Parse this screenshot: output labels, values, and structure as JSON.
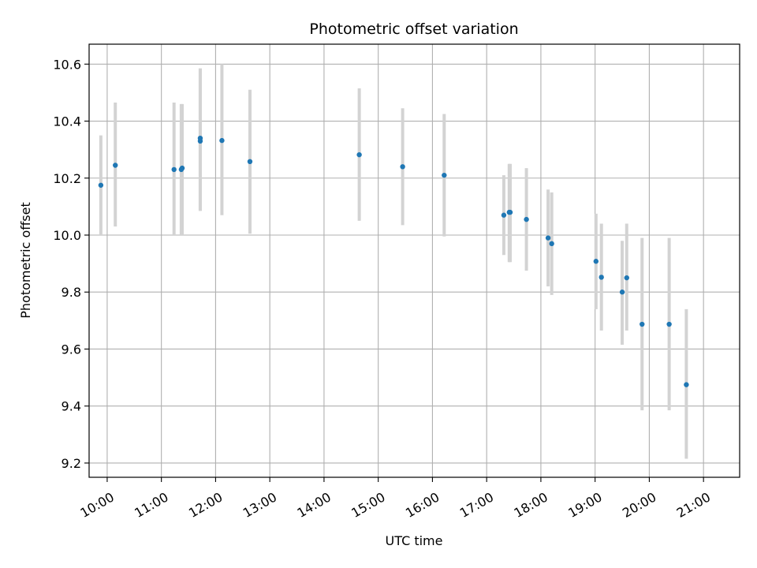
{
  "chart_data": {
    "type": "scatter",
    "title": "Photometric offset variation",
    "xlabel": "UTC time",
    "ylabel": "Photometric offset",
    "x_unit": "hours UTC",
    "xlim": [
      "09:40",
      "21:40"
    ],
    "ylim": [
      9.15,
      10.67
    ],
    "x_ticks": [
      "10:00",
      "11:00",
      "12:00",
      "13:00",
      "14:00",
      "15:00",
      "16:00",
      "17:00",
      "18:00",
      "19:00",
      "20:00",
      "21:00"
    ],
    "y_ticks": [
      "9.2",
      "9.4",
      "9.6",
      "9.8",
      "10.0",
      "10.2",
      "10.4",
      "10.6"
    ],
    "grid": true,
    "colors": {
      "point": "#1f77b4",
      "error_bar": "#d3d3d3",
      "grid": "#b0b0b0"
    },
    "points": [
      {
        "time": "09:53",
        "y": 10.175,
        "ylow": 10.0,
        "yhigh": 10.35
      },
      {
        "time": "10:09",
        "y": 10.245,
        "ylow": 10.03,
        "yhigh": 10.465
      },
      {
        "time": "11:14",
        "y": 10.23,
        "ylow": 10.0,
        "yhigh": 10.465
      },
      {
        "time": "11:22",
        "y": 10.23,
        "ylow": 10.0,
        "yhigh": 10.46
      },
      {
        "time": "11:23",
        "y": 10.235,
        "ylow": 10.0,
        "yhigh": 10.46
      },
      {
        "time": "11:43",
        "y": 10.33,
        "ylow": 10.085,
        "yhigh": 10.585
      },
      {
        "time": "11:43",
        "y": 10.34,
        "ylow": 10.085,
        "yhigh": 10.585
      },
      {
        "time": "12:07",
        "y": 10.332,
        "ylow": 10.07,
        "yhigh": 10.6
      },
      {
        "time": "12:38",
        "y": 10.258,
        "ylow": 10.005,
        "yhigh": 10.51
      },
      {
        "time": "14:39",
        "y": 10.282,
        "ylow": 10.05,
        "yhigh": 10.515
      },
      {
        "time": "15:27",
        "y": 10.24,
        "ylow": 10.035,
        "yhigh": 10.445
      },
      {
        "time": "16:13",
        "y": 10.21,
        "ylow": 9.995,
        "yhigh": 10.425
      },
      {
        "time": "17:19",
        "y": 10.07,
        "ylow": 9.93,
        "yhigh": 10.21
      },
      {
        "time": "17:25",
        "y": 10.08,
        "ylow": 9.905,
        "yhigh": 10.25
      },
      {
        "time": "17:26",
        "y": 10.08,
        "ylow": 9.905,
        "yhigh": 10.25
      },
      {
        "time": "17:44",
        "y": 10.055,
        "ylow": 9.875,
        "yhigh": 10.235
      },
      {
        "time": "18:08",
        "y": 9.99,
        "ylow": 9.82,
        "yhigh": 10.16
      },
      {
        "time": "18:12",
        "y": 9.97,
        "ylow": 9.79,
        "yhigh": 10.15
      },
      {
        "time": "19:01",
        "y": 9.908,
        "ylow": 9.74,
        "yhigh": 10.075
      },
      {
        "time": "19:07",
        "y": 9.852,
        "ylow": 9.665,
        "yhigh": 10.04
      },
      {
        "time": "19:30",
        "y": 9.8,
        "ylow": 9.615,
        "yhigh": 9.98
      },
      {
        "time": "19:35",
        "y": 9.85,
        "ylow": 9.665,
        "yhigh": 10.04
      },
      {
        "time": "19:52",
        "y": 9.687,
        "ylow": 9.385,
        "yhigh": 9.99
      },
      {
        "time": "20:22",
        "y": 9.687,
        "ylow": 9.385,
        "yhigh": 9.99
      },
      {
        "time": "20:41",
        "y": 9.475,
        "ylow": 9.215,
        "yhigh": 9.74
      }
    ]
  }
}
